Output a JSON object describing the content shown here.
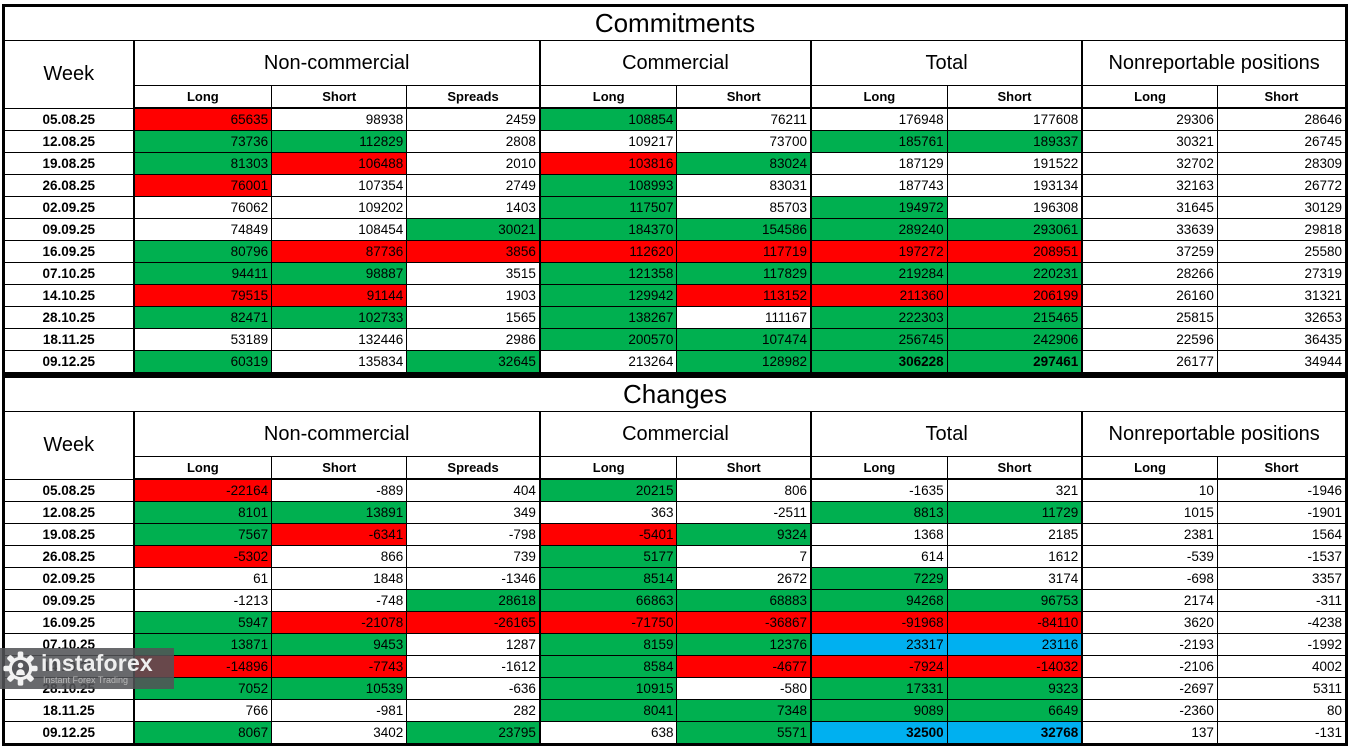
{
  "colors": {
    "increase_green": "#00B050",
    "decrease_red": "#FF0000",
    "highlight_blue": "#00B0F0",
    "cell_default": "#FFFFFF",
    "border": "#000000"
  },
  "commitments": {
    "title": "Commitments",
    "groups": [
      "Week",
      "Non-commercial",
      "Commercial",
      "Total",
      "Nonreportable positions"
    ],
    "subheaders": [
      "Long",
      "Short",
      "Spreads",
      "Long",
      "Short",
      "Long",
      "Short",
      "Long",
      "Short"
    ],
    "rows": [
      {
        "week": "05.08.25",
        "cells": [
          {
            "v": 65635,
            "c": "r"
          },
          {
            "v": 98938
          },
          {
            "v": 2459
          },
          {
            "v": 108854,
            "c": "g"
          },
          {
            "v": 76211
          },
          {
            "v": 176948
          },
          {
            "v": 177608
          },
          {
            "v": 29306
          },
          {
            "v": 28646
          }
        ]
      },
      {
        "week": "12.08.25",
        "cells": [
          {
            "v": 73736,
            "c": "g"
          },
          {
            "v": 112829,
            "c": "g"
          },
          {
            "v": 2808
          },
          {
            "v": 109217
          },
          {
            "v": 73700
          },
          {
            "v": 185761,
            "c": "g"
          },
          {
            "v": 189337,
            "c": "g"
          },
          {
            "v": 30321
          },
          {
            "v": 26745
          }
        ]
      },
      {
        "week": "19.08.25",
        "cells": [
          {
            "v": 81303,
            "c": "g"
          },
          {
            "v": 106488,
            "c": "r"
          },
          {
            "v": 2010
          },
          {
            "v": 103816,
            "c": "r"
          },
          {
            "v": 83024,
            "c": "g"
          },
          {
            "v": 187129
          },
          {
            "v": 191522
          },
          {
            "v": 32702
          },
          {
            "v": 28309
          }
        ]
      },
      {
        "week": "26.08.25",
        "cells": [
          {
            "v": 76001,
            "c": "r"
          },
          {
            "v": 107354
          },
          {
            "v": 2749
          },
          {
            "v": 108993,
            "c": "g"
          },
          {
            "v": 83031
          },
          {
            "v": 187743
          },
          {
            "v": 193134
          },
          {
            "v": 32163
          },
          {
            "v": 26772
          }
        ]
      },
      {
        "week": "02.09.25",
        "cells": [
          {
            "v": 76062
          },
          {
            "v": 109202
          },
          {
            "v": 1403
          },
          {
            "v": 117507,
            "c": "g"
          },
          {
            "v": 85703
          },
          {
            "v": 194972,
            "c": "g"
          },
          {
            "v": 196308
          },
          {
            "v": 31645
          },
          {
            "v": 30129
          }
        ]
      },
      {
        "week": "09.09.25",
        "cells": [
          {
            "v": 74849
          },
          {
            "v": 108454
          },
          {
            "v": 30021,
            "c": "g"
          },
          {
            "v": 184370,
            "c": "g"
          },
          {
            "v": 154586,
            "c": "g"
          },
          {
            "v": 289240,
            "c": "g"
          },
          {
            "v": 293061,
            "c": "g"
          },
          {
            "v": 33639
          },
          {
            "v": 29818
          }
        ]
      },
      {
        "week": "16.09.25",
        "cells": [
          {
            "v": 80796,
            "c": "g"
          },
          {
            "v": 87736,
            "c": "r"
          },
          {
            "v": 3856,
            "c": "r"
          },
          {
            "v": 112620,
            "c": "r"
          },
          {
            "v": 117719,
            "c": "r"
          },
          {
            "v": 197272,
            "c": "r"
          },
          {
            "v": 208951,
            "c": "r"
          },
          {
            "v": 37259
          },
          {
            "v": 25580
          }
        ]
      },
      {
        "week": "07.10.25",
        "cells": [
          {
            "v": 94411,
            "c": "g"
          },
          {
            "v": 98887,
            "c": "g"
          },
          {
            "v": 3515
          },
          {
            "v": 121358,
            "c": "g"
          },
          {
            "v": 117829,
            "c": "g"
          },
          {
            "v": 219284,
            "c": "g"
          },
          {
            "v": 220231,
            "c": "g"
          },
          {
            "v": 28266
          },
          {
            "v": 27319
          }
        ]
      },
      {
        "week": "14.10.25",
        "cells": [
          {
            "v": 79515,
            "c": "r"
          },
          {
            "v": 91144,
            "c": "r"
          },
          {
            "v": 1903
          },
          {
            "v": 129942,
            "c": "g"
          },
          {
            "v": 113152,
            "c": "r"
          },
          {
            "v": 211360,
            "c": "r"
          },
          {
            "v": 206199,
            "c": "r"
          },
          {
            "v": 26160
          },
          {
            "v": 31321
          }
        ]
      },
      {
        "week": "28.10.25",
        "cells": [
          {
            "v": 82471,
            "c": "g"
          },
          {
            "v": 102733,
            "c": "g"
          },
          {
            "v": 1565
          },
          {
            "v": 138267,
            "c": "g"
          },
          {
            "v": 111167
          },
          {
            "v": 222303,
            "c": "g"
          },
          {
            "v": 215465,
            "c": "g"
          },
          {
            "v": 25815
          },
          {
            "v": 32653
          }
        ]
      },
      {
        "week": "18.11.25",
        "cells": [
          {
            "v": 53189
          },
          {
            "v": 132446
          },
          {
            "v": 2986
          },
          {
            "v": 200570,
            "c": "g"
          },
          {
            "v": 107474,
            "c": "g"
          },
          {
            "v": 256745,
            "c": "g"
          },
          {
            "v": 242906,
            "c": "g"
          },
          {
            "v": 22596
          },
          {
            "v": 36435
          }
        ]
      },
      {
        "week": "09.12.25",
        "cells": [
          {
            "v": 60319,
            "c": "g"
          },
          {
            "v": 135834
          },
          {
            "v": 32645,
            "c": "g"
          },
          {
            "v": 213264
          },
          {
            "v": 128982,
            "c": "g"
          },
          {
            "v": 306228,
            "c": "g",
            "bold": true
          },
          {
            "v": 297461,
            "c": "g",
            "bold": true
          },
          {
            "v": 26177
          },
          {
            "v": 34944
          }
        ]
      }
    ]
  },
  "changes": {
    "title": "Changes",
    "groups": [
      "Week",
      "Non-commercial",
      "Commercial",
      "Total",
      "Nonreportable positions"
    ],
    "subheaders": [
      "Long",
      "Short",
      "Spreads",
      "Long",
      "Short",
      "Long",
      "Short",
      "Long",
      "Short"
    ],
    "rows": [
      {
        "week": "05.08.25",
        "cells": [
          {
            "v": -22164,
            "c": "r"
          },
          {
            "v": -889
          },
          {
            "v": 404
          },
          {
            "v": 20215,
            "c": "g"
          },
          {
            "v": 806
          },
          {
            "v": -1635
          },
          {
            "v": 321
          },
          {
            "v": 10
          },
          {
            "v": -1946
          }
        ]
      },
      {
        "week": "12.08.25",
        "cells": [
          {
            "v": 8101,
            "c": "g"
          },
          {
            "v": 13891,
            "c": "g"
          },
          {
            "v": 349
          },
          {
            "v": 363
          },
          {
            "v": -2511
          },
          {
            "v": 8813,
            "c": "g"
          },
          {
            "v": 11729,
            "c": "g"
          },
          {
            "v": 1015
          },
          {
            "v": -1901
          }
        ]
      },
      {
        "week": "19.08.25",
        "cells": [
          {
            "v": 7567,
            "c": "g"
          },
          {
            "v": -6341,
            "c": "r"
          },
          {
            "v": -798
          },
          {
            "v": -5401,
            "c": "r"
          },
          {
            "v": 9324,
            "c": "g"
          },
          {
            "v": 1368
          },
          {
            "v": 2185
          },
          {
            "v": 2381
          },
          {
            "v": 1564
          }
        ]
      },
      {
        "week": "26.08.25",
        "cells": [
          {
            "v": -5302,
            "c": "r"
          },
          {
            "v": 866
          },
          {
            "v": 739
          },
          {
            "v": 5177,
            "c": "g"
          },
          {
            "v": 7
          },
          {
            "v": 614
          },
          {
            "v": 1612
          },
          {
            "v": -539
          },
          {
            "v": -1537
          }
        ]
      },
      {
        "week": "02.09.25",
        "cells": [
          {
            "v": 61
          },
          {
            "v": 1848
          },
          {
            "v": -1346
          },
          {
            "v": 8514,
            "c": "g"
          },
          {
            "v": 2672
          },
          {
            "v": 7229,
            "c": "g"
          },
          {
            "v": 3174
          },
          {
            "v": -698
          },
          {
            "v": 3357
          }
        ]
      },
      {
        "week": "09.09.25",
        "cells": [
          {
            "v": -1213
          },
          {
            "v": -748
          },
          {
            "v": 28618,
            "c": "g"
          },
          {
            "v": 66863,
            "c": "g"
          },
          {
            "v": 68883,
            "c": "g"
          },
          {
            "v": 94268,
            "c": "g"
          },
          {
            "v": 96753,
            "c": "g"
          },
          {
            "v": 2174
          },
          {
            "v": -311
          }
        ]
      },
      {
        "week": "16.09.25",
        "cells": [
          {
            "v": 5947,
            "c": "g"
          },
          {
            "v": -21078,
            "c": "r"
          },
          {
            "v": -26165,
            "c": "r"
          },
          {
            "v": -71750,
            "c": "r"
          },
          {
            "v": -36867,
            "c": "r"
          },
          {
            "v": -91968,
            "c": "r"
          },
          {
            "v": -84110,
            "c": "r"
          },
          {
            "v": 3620
          },
          {
            "v": -4238
          }
        ]
      },
      {
        "week": "07.10.25",
        "cells": [
          {
            "v": 13871,
            "c": "g"
          },
          {
            "v": 9453,
            "c": "g"
          },
          {
            "v": 1287
          },
          {
            "v": 8159,
            "c": "g"
          },
          {
            "v": 12376,
            "c": "g"
          },
          {
            "v": 23317,
            "c": "b"
          },
          {
            "v": 23116,
            "c": "b"
          },
          {
            "v": -2193
          },
          {
            "v": -1992
          }
        ]
      },
      {
        "week": "14.10.25",
        "cells": [
          {
            "v": -14896,
            "c": "r"
          },
          {
            "v": -7743,
            "c": "r"
          },
          {
            "v": -1612
          },
          {
            "v": 8584,
            "c": "g"
          },
          {
            "v": -4677,
            "c": "r"
          },
          {
            "v": -7924,
            "c": "r"
          },
          {
            "v": -14032,
            "c": "r"
          },
          {
            "v": -2106
          },
          {
            "v": 4002
          }
        ]
      },
      {
        "week": "28.10.25",
        "cells": [
          {
            "v": 7052,
            "c": "g"
          },
          {
            "v": 10539,
            "c": "g"
          },
          {
            "v": -636
          },
          {
            "v": 10915,
            "c": "g"
          },
          {
            "v": -580
          },
          {
            "v": 17331,
            "c": "g"
          },
          {
            "v": 9323,
            "c": "g"
          },
          {
            "v": -2697
          },
          {
            "v": 5311
          }
        ]
      },
      {
        "week": "18.11.25",
        "cells": [
          {
            "v": 766
          },
          {
            "v": -981
          },
          {
            "v": 282
          },
          {
            "v": 8041,
            "c": "g"
          },
          {
            "v": 7348,
            "c": "g"
          },
          {
            "v": 9089,
            "c": "g"
          },
          {
            "v": 6649,
            "c": "g"
          },
          {
            "v": -2360
          },
          {
            "v": 80
          }
        ]
      },
      {
        "week": "09.12.25",
        "cells": [
          {
            "v": 8067,
            "c": "g"
          },
          {
            "v": 3402
          },
          {
            "v": 23795,
            "c": "g"
          },
          {
            "v": 638
          },
          {
            "v": 5571,
            "c": "g"
          },
          {
            "v": 32500,
            "c": "b",
            "bold": true
          },
          {
            "v": 32768,
            "c": "b",
            "bold": true
          },
          {
            "v": 137
          },
          {
            "v": -131
          }
        ]
      }
    ]
  },
  "watermark": {
    "brand": "instaforex",
    "tagline": "Instant Forex Trading",
    "icon": "gear-person-icon"
  }
}
